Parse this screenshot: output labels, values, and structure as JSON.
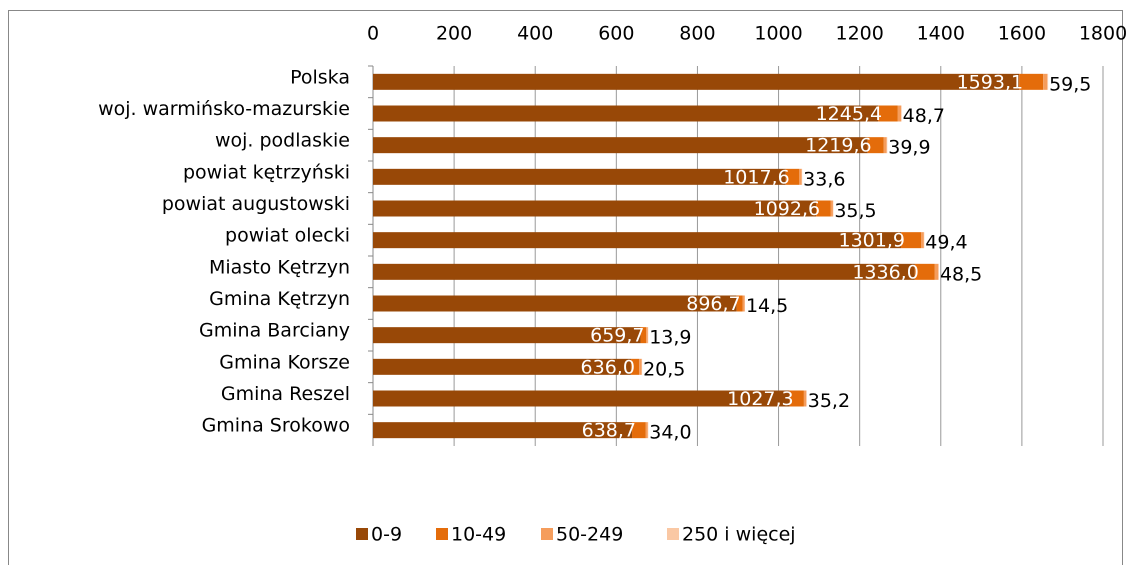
{
  "chart_data": {
    "type": "stacked_barh",
    "categories": [
      "Polska",
      "woj. warmińsko-mazurskie",
      "woj. podlaskie",
      "powiat kętrzyński",
      "powiat augustowski",
      "powiat olecki",
      "Miasto Kętrzyn",
      "Gmina Kętrzyn",
      "Gmina Barciany",
      "Gmina Korsze",
      "Gmina Reszel",
      "Gmina Srokowo"
    ],
    "series": [
      {
        "name": "0-9",
        "color": "#984807",
        "values": [
          1593.1,
          1245.4,
          1219.6,
          1017.6,
          1092.6,
          1301.9,
          1336.0,
          896.7,
          659.7,
          636.0,
          1027.3,
          638.7
        ],
        "value_labels": [
          "1593,1",
          "1245,4",
          "1219,6",
          "1017,6",
          "1092,6",
          "1301,9",
          "1336,0",
          "896,7",
          "659,7",
          "636,0",
          "1027,3",
          "638,7"
        ]
      },
      {
        "name": "10-49",
        "color": "#e46c0a",
        "values": [
          59.5,
          48.7,
          39.9,
          33.6,
          35.5,
          49.4,
          48.5,
          14.5,
          13.9,
          20.5,
          35.2,
          34.0
        ],
        "value_labels": [
          "59,5",
          "48,7",
          "39,9",
          "33,6",
          "35,5",
          "49,4",
          "48,5",
          "14,5",
          "13,9",
          "20,5",
          "35,2",
          "34,0"
        ]
      },
      {
        "name": "50-249",
        "color": "#f59d5c",
        "values": [
          10,
          8,
          7,
          6,
          6,
          7,
          9,
          5,
          4,
          6,
          6,
          5
        ]
      },
      {
        "name": "250 i więcej",
        "color": "#fac8a4",
        "values": [
          2,
          1.5,
          1.5,
          1,
          1,
          1,
          2,
          1,
          1,
          1,
          1,
          1
        ]
      }
    ],
    "xlim": [
      0,
      1800
    ],
    "xticks": [
      0,
      200,
      400,
      600,
      800,
      1000,
      1200,
      1400,
      1600,
      1800
    ],
    "grid": true,
    "legend": "bottom"
  }
}
